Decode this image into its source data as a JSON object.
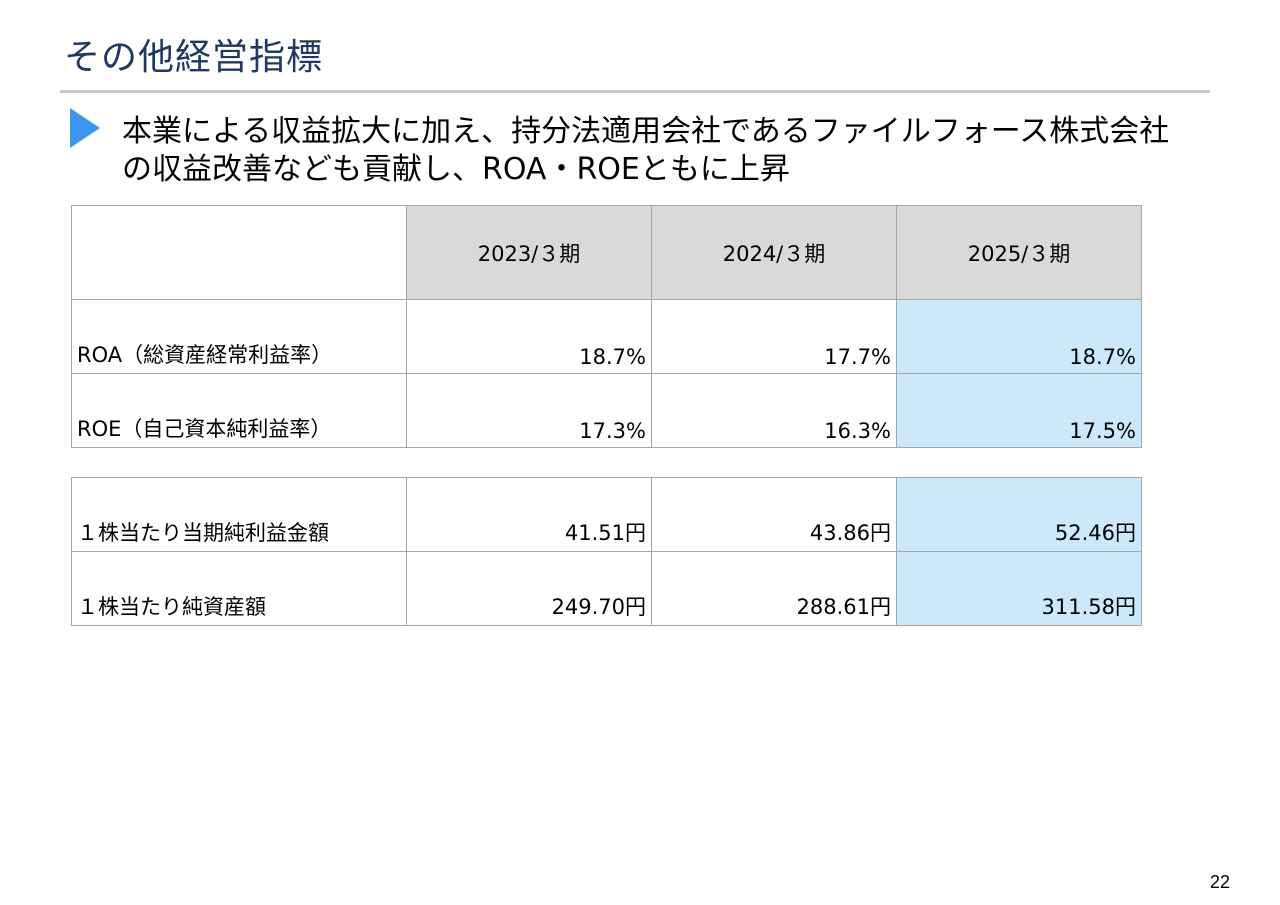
{
  "page": {
    "title": "その他経営指標",
    "lead": "本業による収益拡大に加え、持分法適用会社であるファイルフォース株式会社の収益改善なども貢献し、ROA・ROEともに上昇",
    "page_number": "22"
  },
  "colors": {
    "title": "#1f3864",
    "bullet": "#3b95ee",
    "header_fill": "#d9d9d9",
    "highlight_fill": "#cce9fc"
  },
  "table": {
    "headers": [
      "",
      "2023/３期",
      "2024/３期",
      "2025/３期"
    ],
    "ratio_rows": [
      {
        "label": "ROA（総資産経常利益率）",
        "values": [
          "18.7%",
          "17.7%",
          "18.7%"
        ]
      },
      {
        "label": "ROE（自己資本純利益率）",
        "values": [
          "17.3%",
          "16.3%",
          "17.5%"
        ]
      }
    ],
    "per_share_rows": [
      {
        "label": "１株当たり当期純利益金額",
        "values": [
          "41.51円",
          "43.86円",
          "52.46円"
        ]
      },
      {
        "label": "１株当たり純資産額",
        "values": [
          "249.70円",
          "288.61円",
          "311.58円"
        ]
      }
    ]
  }
}
